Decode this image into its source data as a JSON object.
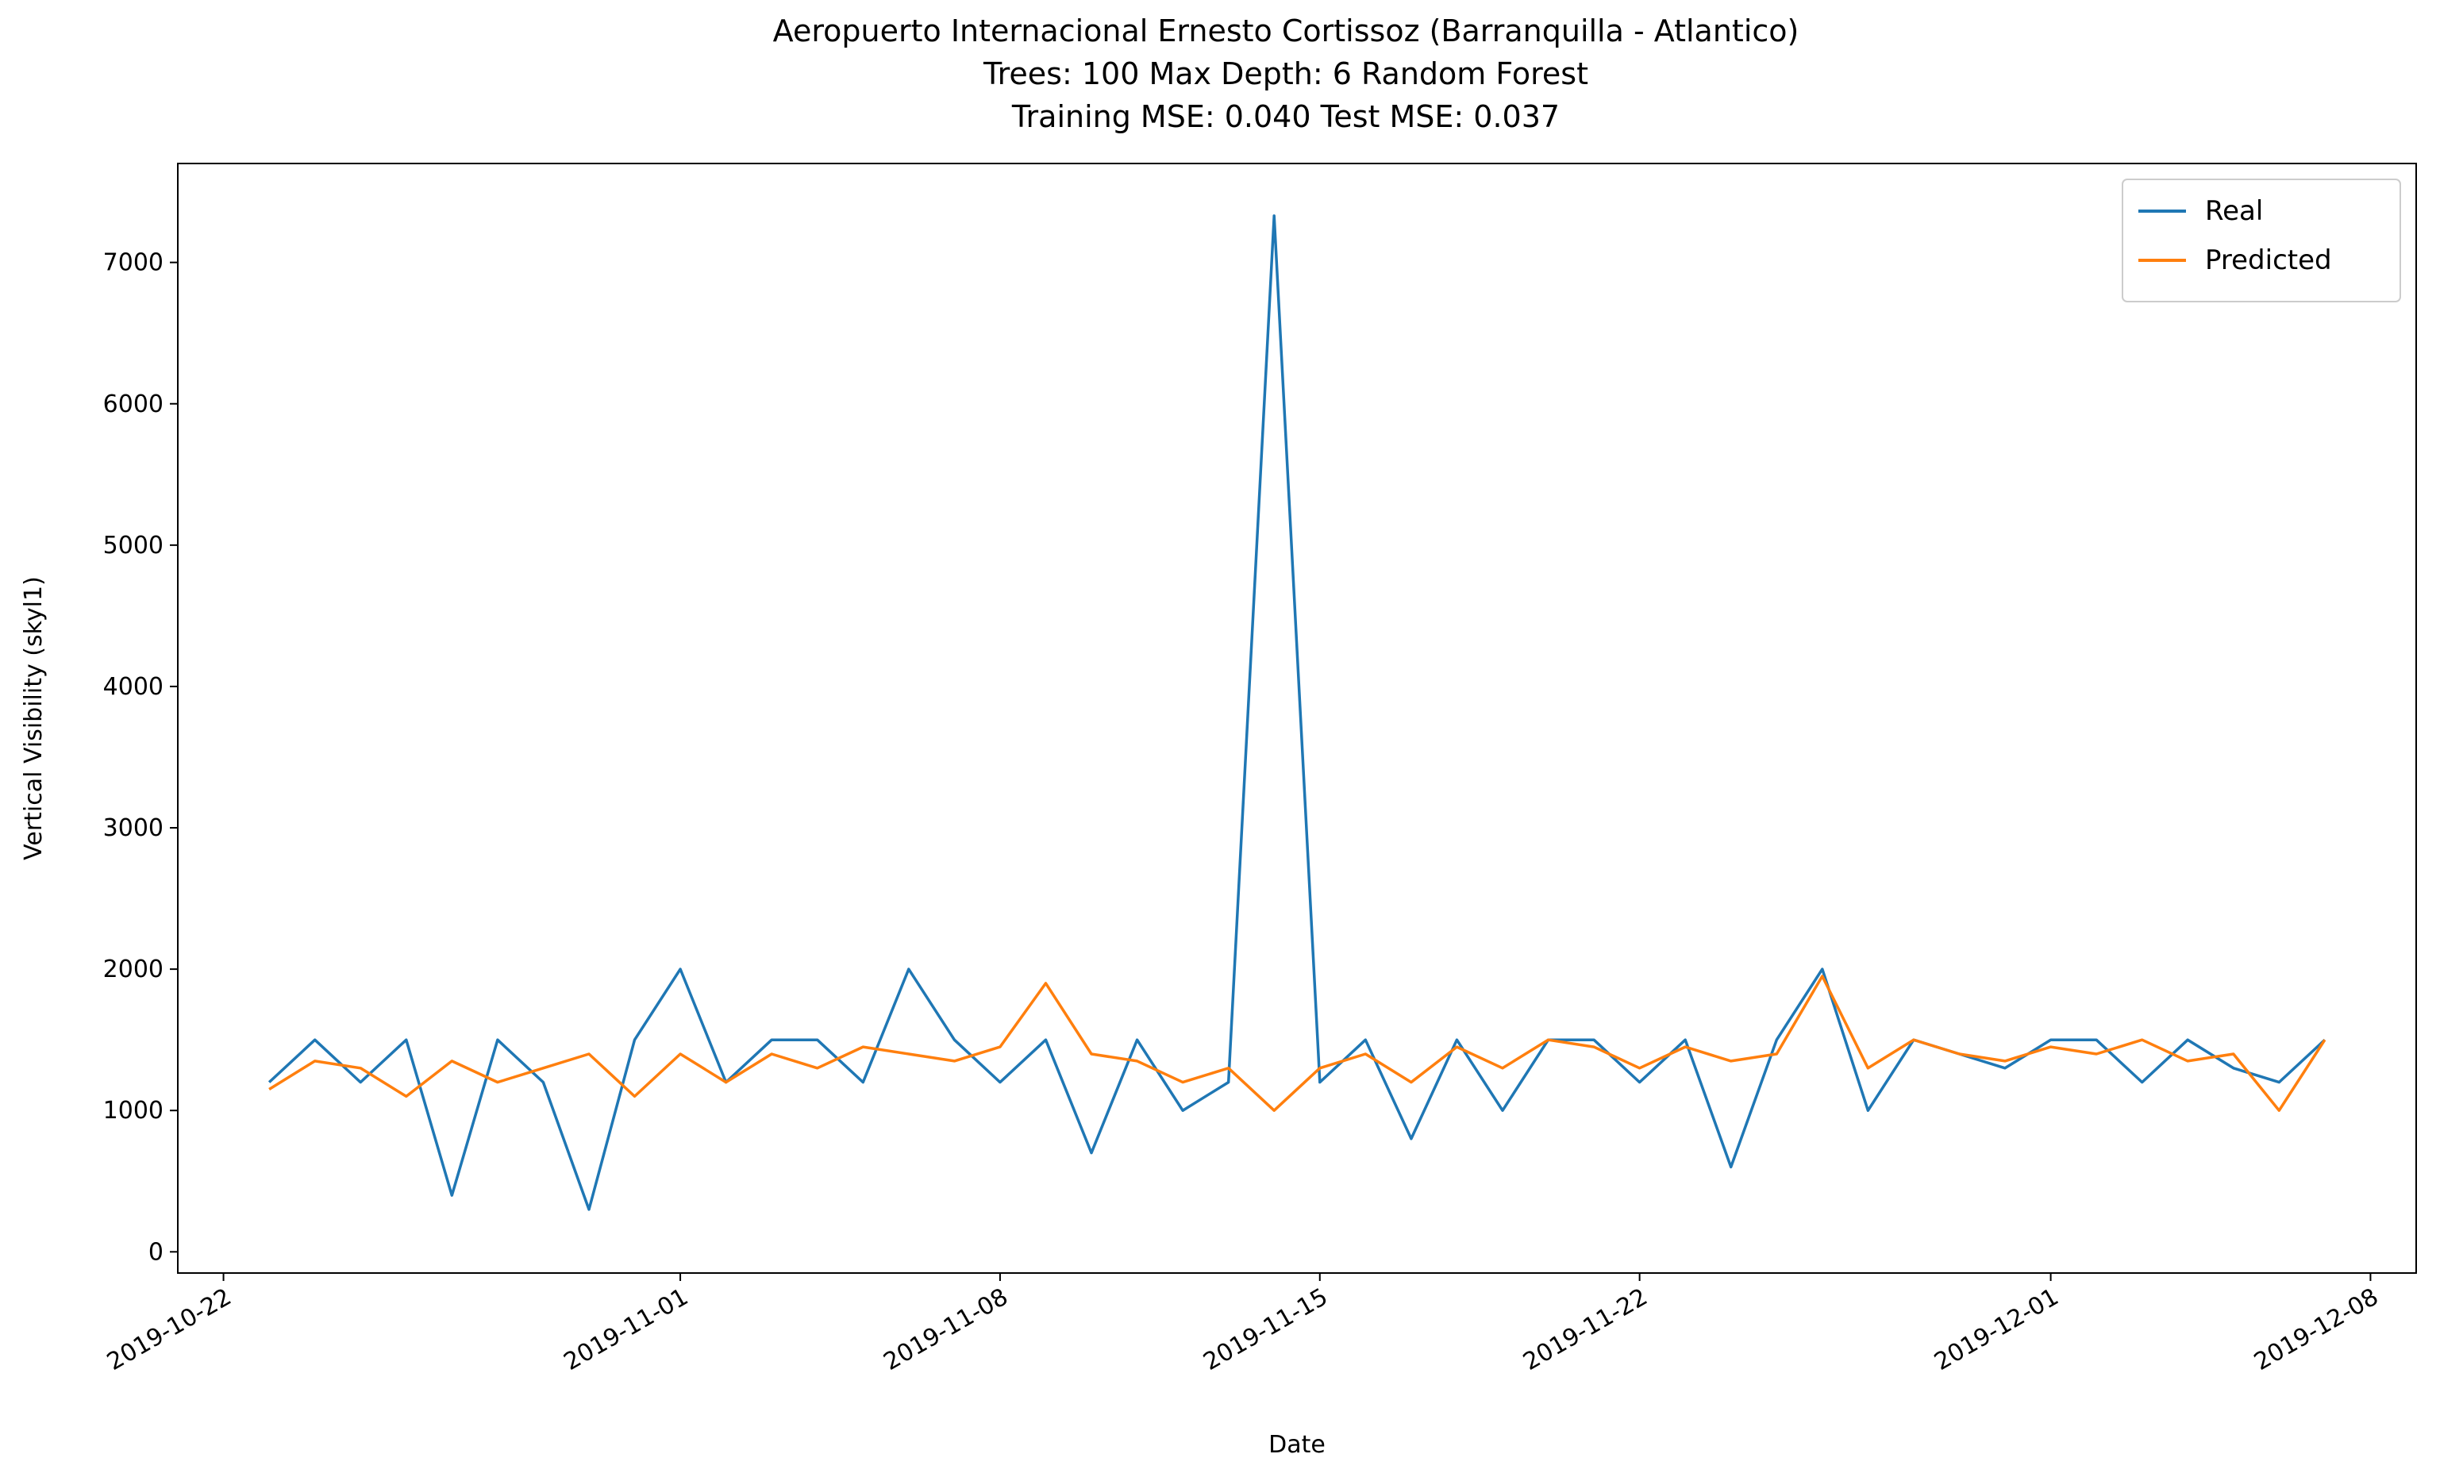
{
  "chart_data": {
    "type": "line",
    "title": [
      "Aeropuerto Internacional Ernesto Cortissoz (Barranquilla - Atlantico)",
      "Trees: 100 Max Depth: 6 Random Forest",
      "Training MSE: 0.040 Test MSE: 0.037"
    ],
    "xlabel": "Date",
    "ylabel": "Vertical Visibility (skyl1)",
    "x": [
      "2019-10-23",
      "2019-10-24",
      "2019-10-25",
      "2019-10-26",
      "2019-10-27",
      "2019-10-28",
      "2019-10-29",
      "2019-10-30",
      "2019-10-31",
      "2019-11-01",
      "2019-11-02",
      "2019-11-03",
      "2019-11-04",
      "2019-11-05",
      "2019-11-06",
      "2019-11-07",
      "2019-11-08",
      "2019-11-09",
      "2019-11-10",
      "2019-11-11",
      "2019-11-12",
      "2019-11-13",
      "2019-11-14",
      "2019-11-15",
      "2019-11-16",
      "2019-11-17",
      "2019-11-18",
      "2019-11-19",
      "2019-11-20",
      "2019-11-21",
      "2019-11-22",
      "2019-11-23",
      "2019-11-24",
      "2019-11-25",
      "2019-11-26",
      "2019-11-27",
      "2019-11-28",
      "2019-11-29",
      "2019-11-30",
      "2019-12-01",
      "2019-12-02",
      "2019-12-03",
      "2019-12-04",
      "2019-12-05",
      "2019-12-06",
      "2019-12-07"
    ],
    "series": [
      {
        "name": "Real",
        "color": "#1f77b4",
        "values": [
          1200,
          1500,
          1200,
          1500,
          400,
          1500,
          1200,
          300,
          1500,
          2000,
          1200,
          1500,
          1500,
          1200,
          2000,
          1500,
          1200,
          1500,
          700,
          1500,
          1000,
          1200,
          7330,
          1200,
          1500,
          800,
          1500,
          1000,
          1500,
          1500,
          1200,
          1500,
          600,
          1500,
          2000,
          1000,
          1500,
          1400,
          1300,
          1500,
          1500,
          1200,
          1500,
          1300,
          1200,
          1500
        ]
      },
      {
        "name": "Predicted",
        "color": "#ff7f0e",
        "values": [
          1150,
          1350,
          1300,
          1100,
          1350,
          1200,
          1300,
          1400,
          1100,
          1400,
          1200,
          1400,
          1300,
          1450,
          1400,
          1350,
          1450,
          1900,
          1400,
          1350,
          1200,
          1300,
          1000,
          1300,
          1400,
          1200,
          1450,
          1300,
          1500,
          1450,
          1300,
          1450,
          1350,
          1400,
          1950,
          1300,
          1500,
          1400,
          1350,
          1450,
          1400,
          1500,
          1350,
          1400,
          1000,
          1500
        ]
      }
    ],
    "xlim": [
      "2019-10-21",
      "2019-12-09"
    ],
    "xticks": [
      "2019-10-22",
      "2019-11-01",
      "2019-11-08",
      "2019-11-15",
      "2019-11-22",
      "2019-12-01",
      "2019-12-08"
    ],
    "ylim": [
      -150,
      7700
    ],
    "yticks": [
      0,
      1000,
      2000,
      3000,
      4000,
      5000,
      6000,
      7000
    ],
    "legend": "upper right"
  }
}
